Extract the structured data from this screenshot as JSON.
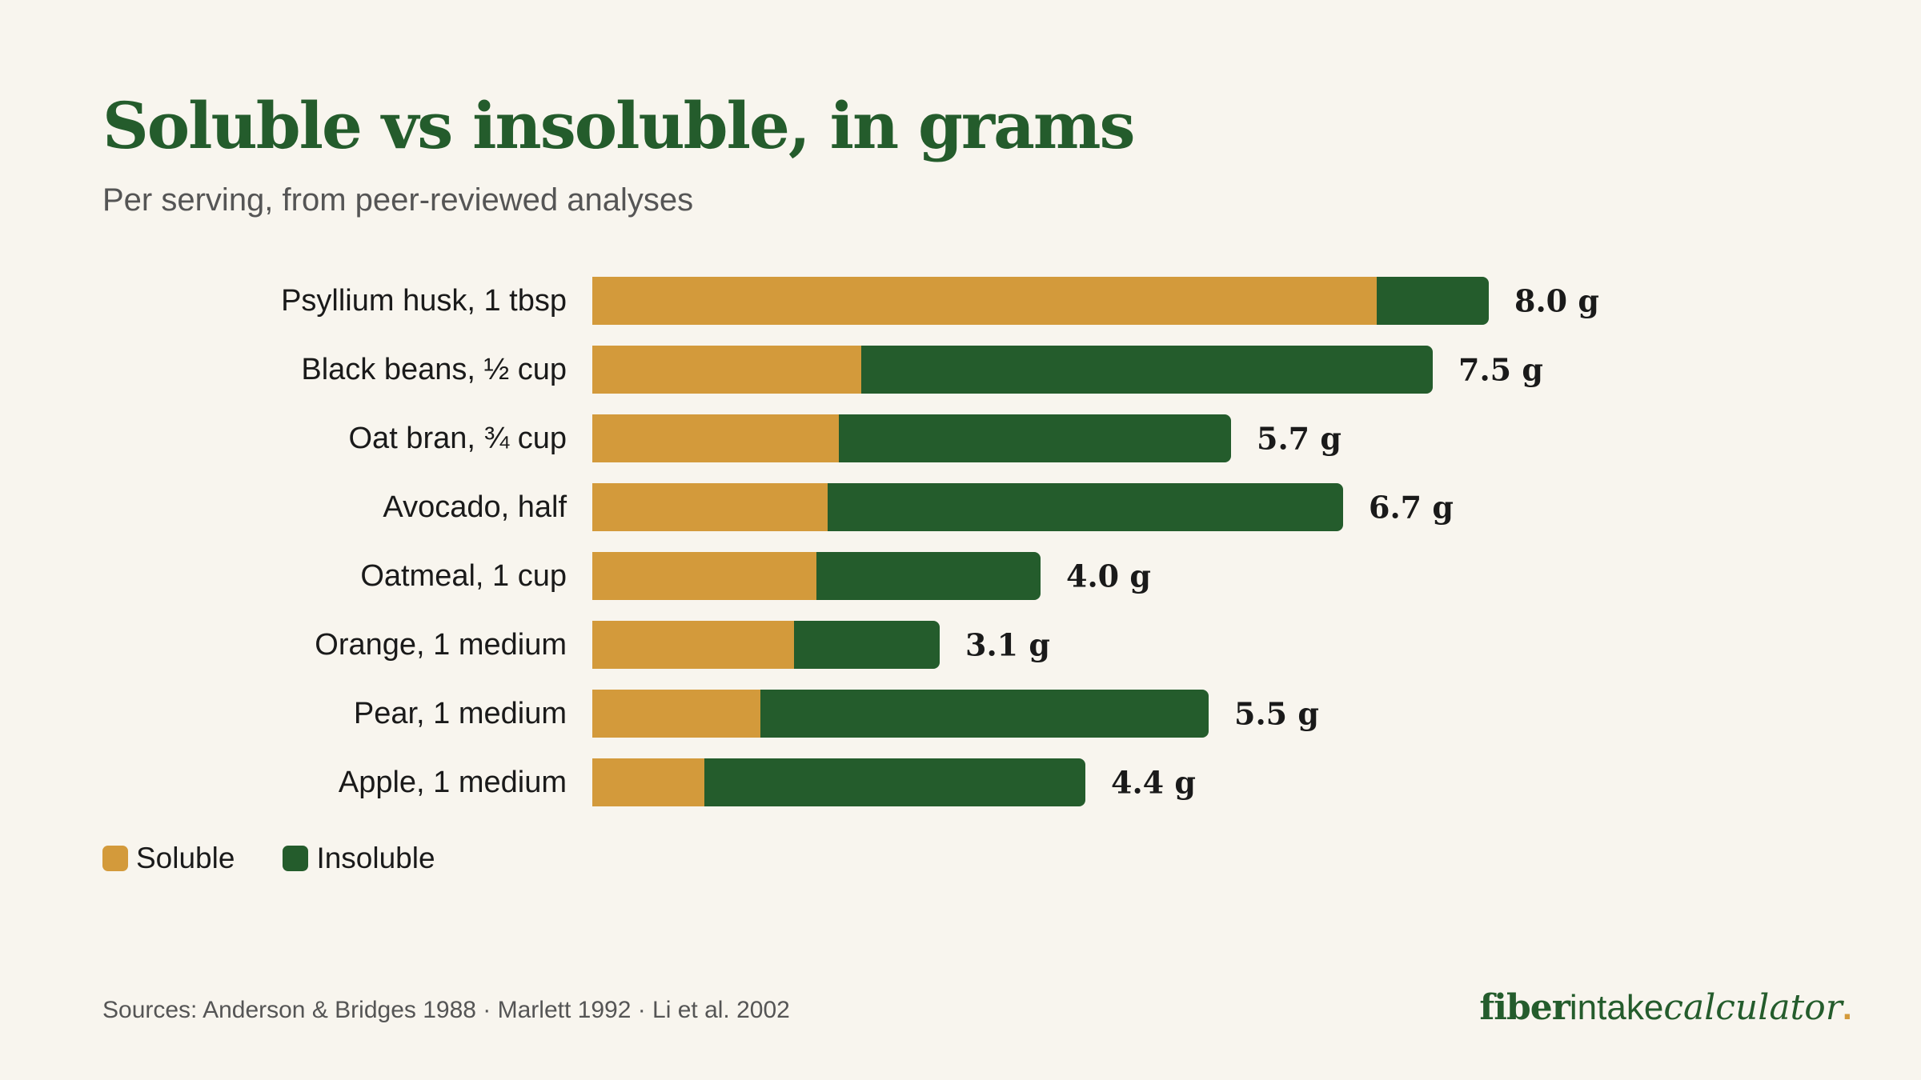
{
  "title": "Soluble vs insoluble, in grams",
  "subtitle": "Per serving, from peer-reviewed analyses",
  "chart_data": {
    "type": "bar",
    "orientation": "horizontal",
    "stacked": true,
    "categories": [
      "Psyllium husk, 1 tbsp",
      "Black beans, ½ cup",
      "Oat bran, ¾ cup",
      "Avocado, half",
      "Oatmeal, 1 cup",
      "Orange, 1 medium",
      "Pear, 1 medium",
      "Apple, 1 medium"
    ],
    "series": [
      {
        "name": "Soluble",
        "color": "#d39a3b",
        "values": [
          7.0,
          2.4,
          2.2,
          2.1,
          2.0,
          1.8,
          1.5,
          1.0
        ]
      },
      {
        "name": "Insoluble",
        "color": "#245c2c",
        "values": [
          1.0,
          5.1,
          3.5,
          4.6,
          2.0,
          1.3,
          4.0,
          3.4
        ]
      }
    ],
    "totals": [
      "8.0 g",
      "7.5 g",
      "5.7 g",
      "6.7 g",
      "4.0 g",
      "3.1 g",
      "5.5 g",
      "4.4 g"
    ],
    "xlim": [
      0,
      8.0
    ],
    "grid": false,
    "legend_position": "bottom-left"
  },
  "sources": "Sources: Anderson & Bridges 1988 · Marlett 1992 · Li et al. 2002",
  "brand": {
    "part1": "fiber",
    "part2": "intake",
    "part3": "calculator",
    "dot": "."
  }
}
